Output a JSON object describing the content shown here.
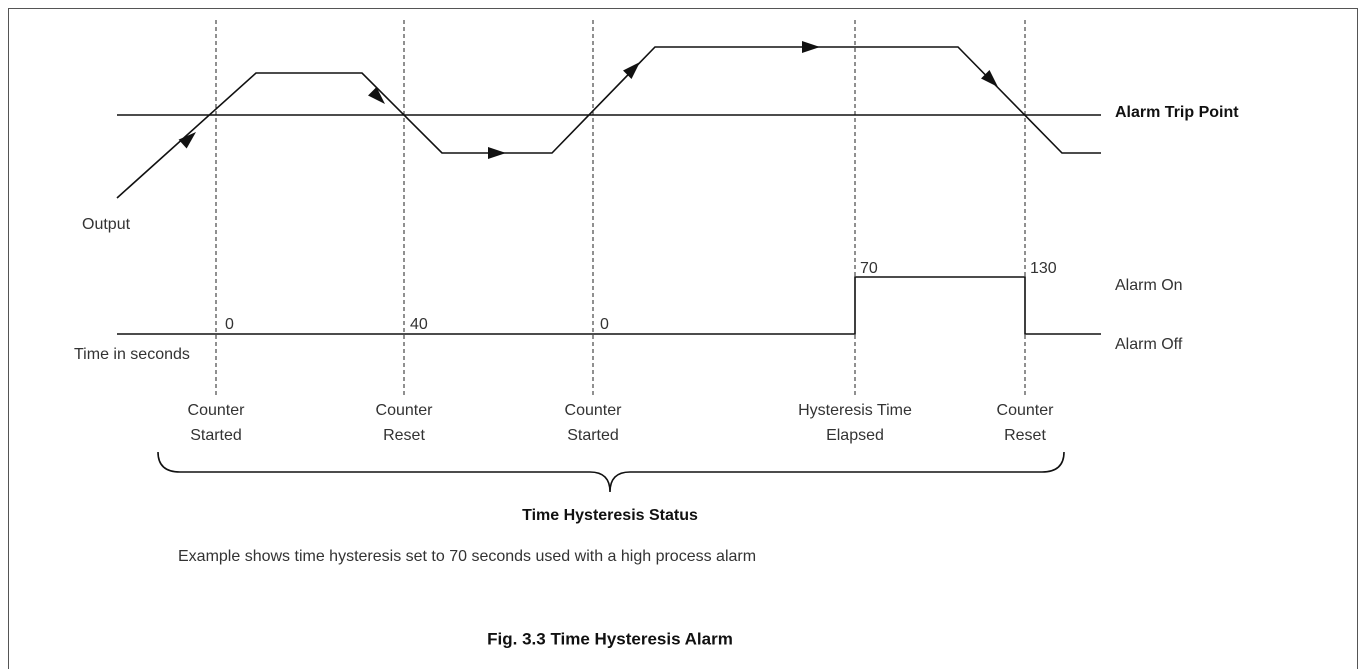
{
  "trip_label": "Alarm Trip Point",
  "output_label": "Output",
  "alarm_on": "Alarm On",
  "alarm_off": "Alarm Off",
  "time_label": "Time in seconds",
  "counts": [
    "0",
    "40",
    "0",
    "70",
    "130"
  ],
  "events": [
    [
      "Counter",
      "Started"
    ],
    [
      "Counter",
      "Reset"
    ],
    [
      "Counter",
      "Started"
    ],
    [
      "Hysteresis Time",
      "Elapsed"
    ],
    [
      "Counter",
      "Reset"
    ]
  ],
  "status_label": "Time Hysteresis Status",
  "caption": "Example shows time hysteresis set to 70 seconds used with a high process alarm",
  "figure_title": "Fig. 3.3 Time Hysteresis Alarm"
}
